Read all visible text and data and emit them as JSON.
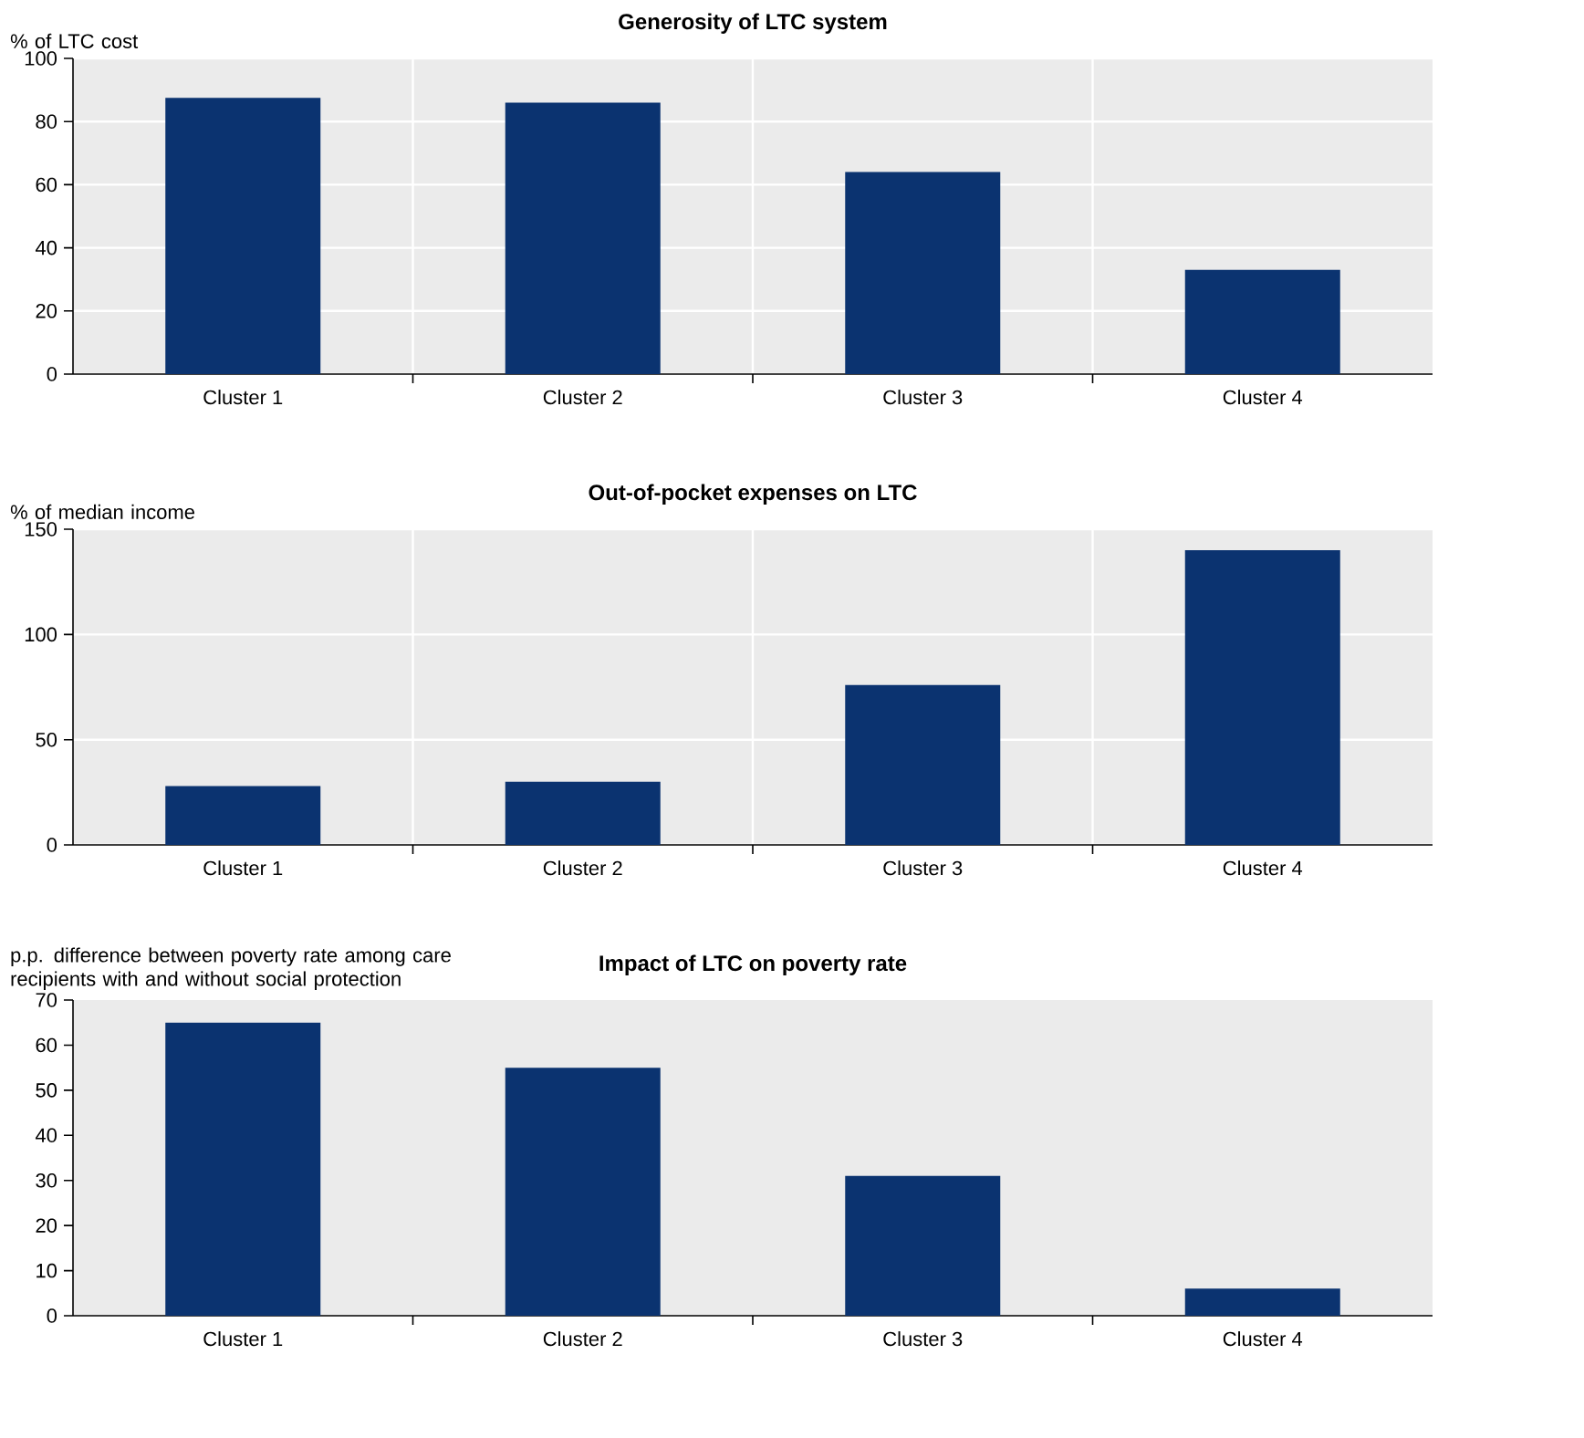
{
  "chart_data": [
    {
      "type": "bar",
      "title": "Generosity of LTC system",
      "ylabel": "% of LTC cost",
      "categories": [
        "Cluster 1",
        "Cluster 2",
        "Cluster 3",
        "Cluster 4"
      ],
      "values": [
        87.5,
        86,
        64,
        33
      ],
      "color": "#0b3370",
      "ylim": [
        0,
        100
      ],
      "yticks": [
        0,
        20,
        40,
        60,
        80,
        100
      ],
      "grid": true
    },
    {
      "type": "bar",
      "title": "Out-of-pocket expenses on LTC",
      "ylabel": "% of median income",
      "categories": [
        "Cluster 1",
        "Cluster 2",
        "Cluster 3",
        "Cluster 4"
      ],
      "values": [
        28,
        30,
        76,
        140
      ],
      "color": "#0b3370",
      "ylim": [
        0,
        150
      ],
      "yticks": [
        0,
        50,
        100,
        150
      ],
      "grid": true
    },
    {
      "type": "bar",
      "title": "Impact of LTC on poverty rate",
      "ylabel": "p.p. difference between poverty rate among care recipients with and without social protection",
      "categories": [
        "Cluster 1",
        "Cluster 2",
        "Cluster 3",
        "Cluster 4"
      ],
      "values": [
        65,
        55,
        31,
        6
      ],
      "color": "#0b3370",
      "ylim": [
        0,
        70
      ],
      "yticks": [
        0,
        10,
        20,
        30,
        40,
        50,
        60,
        70
      ],
      "grid": false
    }
  ]
}
